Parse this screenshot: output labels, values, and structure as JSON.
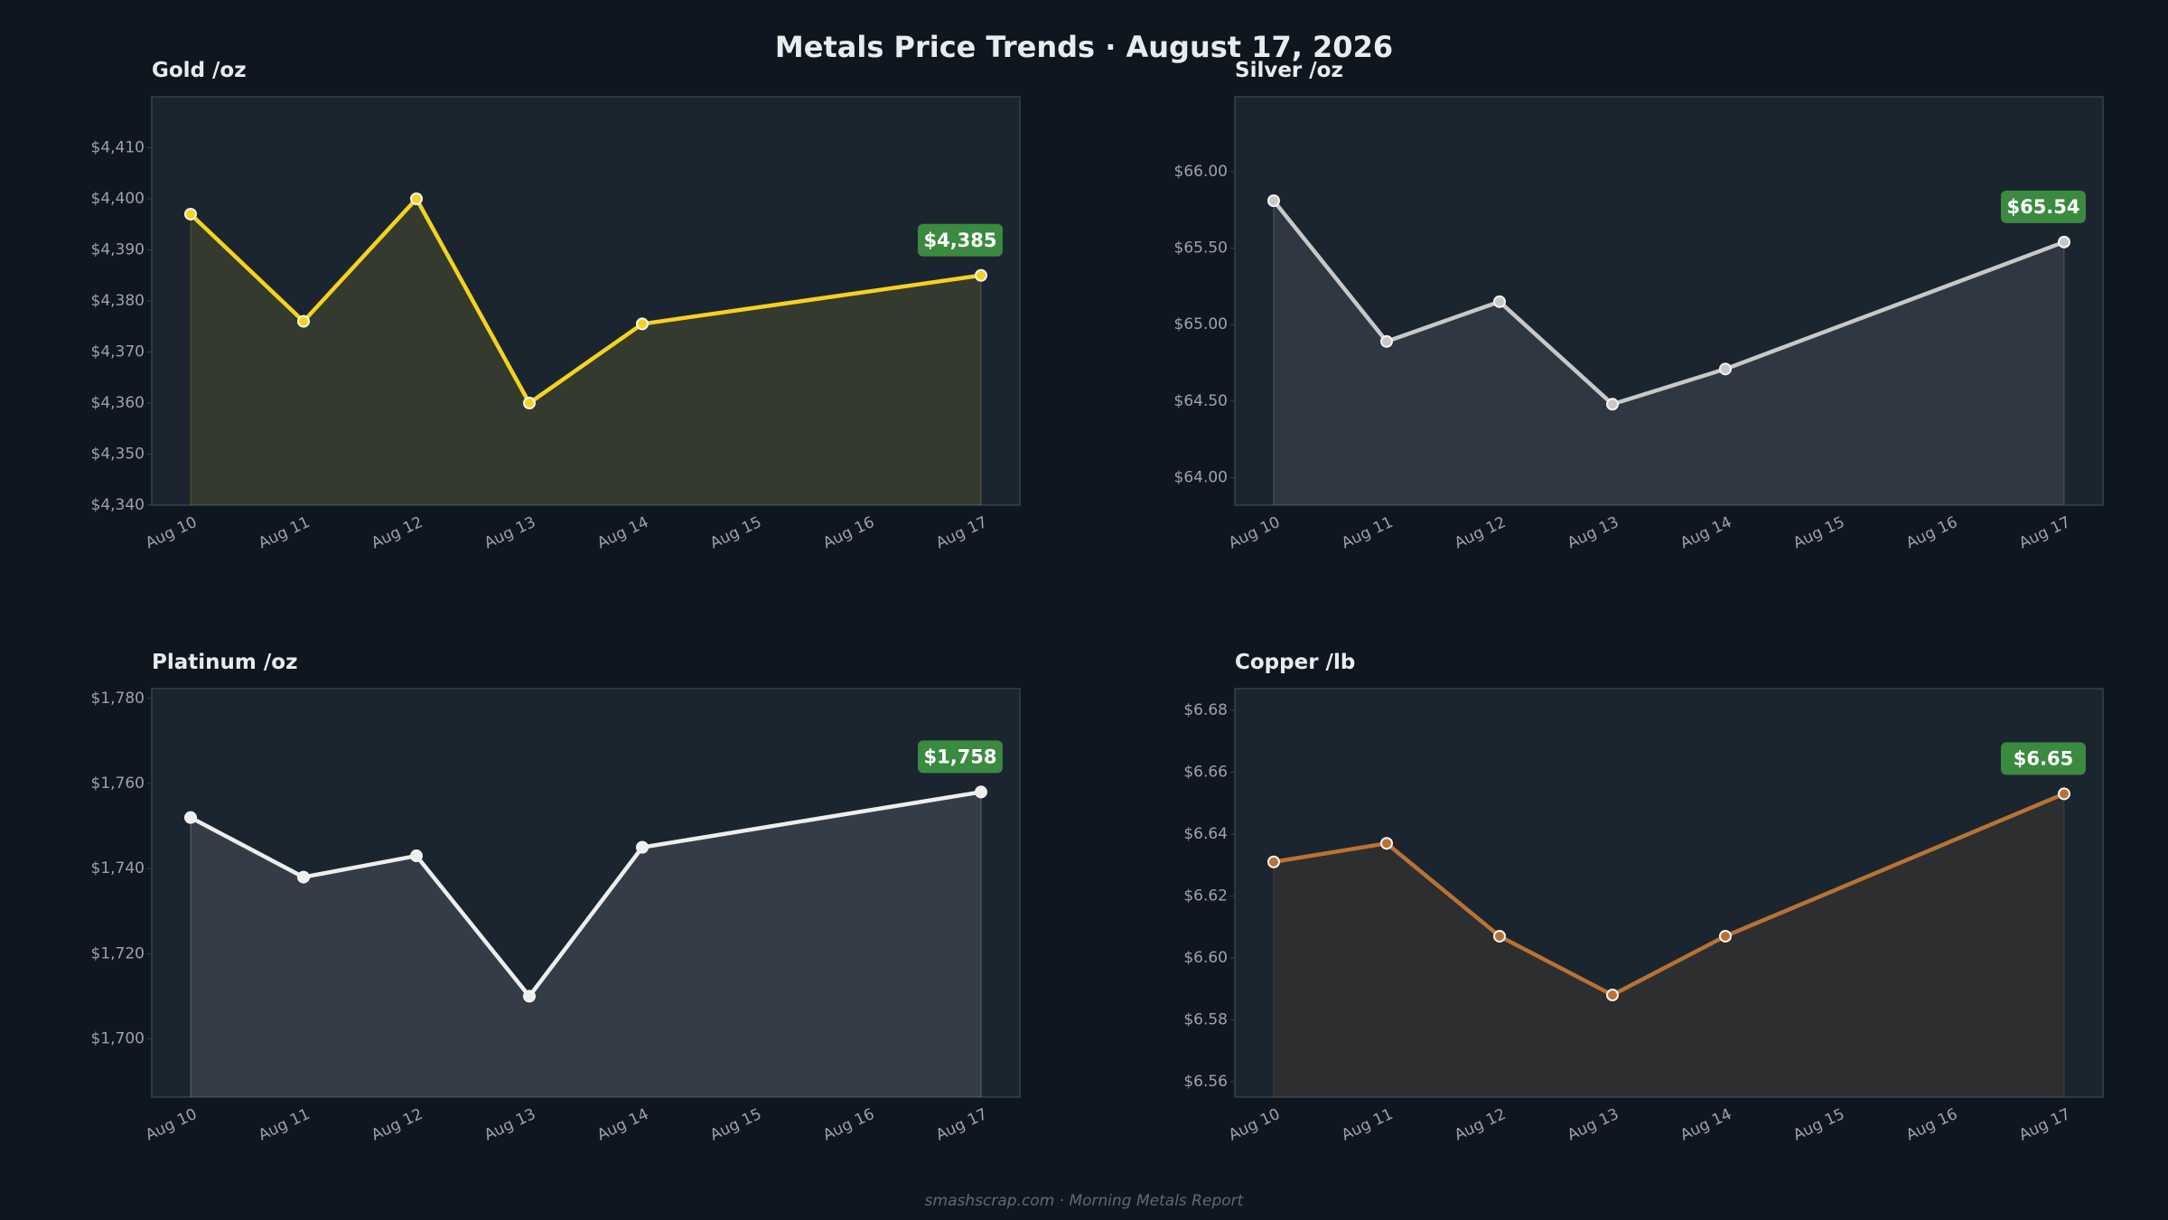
{
  "title": "Metals Price Trends  ·  August 17, 2026",
  "footer": "smashscrap.com  ·  Morning Metals Report",
  "chart_data": [
    {
      "type": "line",
      "title": "Gold  /oz",
      "color": "#f5d21f",
      "xticks": [
        "Aug 10",
        "Aug 11",
        "Aug 12",
        "Aug 13",
        "Aug 14",
        "Aug 15",
        "Aug 16",
        "Aug 17"
      ],
      "x": [
        "Aug 10",
        "Aug 11",
        "Aug 12",
        "Aug 13",
        "Aug 14",
        "Aug 17"
      ],
      "values": [
        4397,
        4376,
        4400,
        4360,
        4375.5,
        4385
      ],
      "value_labels": [
        null,
        null,
        null,
        null,
        null,
        "$4,385"
      ],
      "ylim": [
        4340,
        4420
      ],
      "yticks": [
        {
          "value": 4340,
          "label": "$4,340"
        },
        {
          "value": 4350,
          "label": "$4,350"
        },
        {
          "value": 4360,
          "label": "$4,360"
        },
        {
          "value": 4370,
          "label": "$4,370"
        },
        {
          "value": 4380,
          "label": "$4,380"
        },
        {
          "value": 4390,
          "label": "$4,390"
        },
        {
          "value": 4400,
          "label": "$4,400"
        },
        {
          "value": 4410,
          "label": "$4,410"
        }
      ]
    },
    {
      "type": "line",
      "title": "Silver  /oz",
      "color": "#c8c8c8",
      "xticks": [
        "Aug 10",
        "Aug 11",
        "Aug 12",
        "Aug 13",
        "Aug 14",
        "Aug 15",
        "Aug 16",
        "Aug 17"
      ],
      "x": [
        "Aug 10",
        "Aug 11",
        "Aug 12",
        "Aug 13",
        "Aug 14",
        "Aug 17"
      ],
      "values": [
        65.81,
        64.89,
        65.15,
        64.48,
        64.71,
        65.54
      ],
      "value_labels": [
        null,
        null,
        null,
        null,
        null,
        "$65.54"
      ],
      "ylim": [
        63.82,
        66.49
      ],
      "yticks": [
        {
          "value": 64,
          "label": "$64.00"
        },
        {
          "value": 64.5,
          "label": "$64.50"
        },
        {
          "value": 65,
          "label": "$65.00"
        },
        {
          "value": 65.5,
          "label": "$65.50"
        },
        {
          "value": 66,
          "label": "$66.00"
        }
      ]
    },
    {
      "type": "line",
      "title": "Platinum  /oz",
      "color": "#eeeeee",
      "xticks": [
        "Aug 10",
        "Aug 11",
        "Aug 12",
        "Aug 13",
        "Aug 14",
        "Aug 15",
        "Aug 16",
        "Aug 17"
      ],
      "x": [
        "Aug 10",
        "Aug 11",
        "Aug 12",
        "Aug 13",
        "Aug 14",
        "Aug 17"
      ],
      "values": [
        1752,
        1738,
        1743,
        1710,
        1745,
        1758
      ],
      "value_labels": [
        null,
        null,
        null,
        null,
        null,
        "$1,758"
      ],
      "ylim": [
        1686.3,
        1782.3
      ],
      "yticks": [
        {
          "value": 1700,
          "label": "$1,700"
        },
        {
          "value": 1720,
          "label": "$1,720"
        },
        {
          "value": 1740,
          "label": "$1,740"
        },
        {
          "value": 1760,
          "label": "$1,760"
        },
        {
          "value": 1780,
          "label": "$1,780"
        }
      ]
    },
    {
      "type": "line",
      "title": "Copper  /lb",
      "color": "#b87333",
      "xticks": [
        "Aug 10",
        "Aug 11",
        "Aug 12",
        "Aug 13",
        "Aug 14",
        "Aug 15",
        "Aug 16",
        "Aug 17"
      ],
      "x": [
        "Aug 10",
        "Aug 11",
        "Aug 12",
        "Aug 13",
        "Aug 14",
        "Aug 17"
      ],
      "values": [
        6.631,
        6.637,
        6.607,
        6.588,
        6.607,
        6.653
      ],
      "value_labels": [
        null,
        null,
        null,
        null,
        null,
        "$6.65"
      ],
      "ylim": [
        6.555,
        6.687
      ],
      "yticks": [
        {
          "value": 6.56,
          "label": "$6.56"
        },
        {
          "value": 6.58,
          "label": "$6.58"
        },
        {
          "value": 6.6,
          "label": "$6.60"
        },
        {
          "value": 6.62,
          "label": "$6.62"
        },
        {
          "value": 6.64,
          "label": "$6.64"
        },
        {
          "value": 6.66,
          "label": "$6.66"
        },
        {
          "value": 6.68,
          "label": "$6.68"
        }
      ]
    }
  ]
}
